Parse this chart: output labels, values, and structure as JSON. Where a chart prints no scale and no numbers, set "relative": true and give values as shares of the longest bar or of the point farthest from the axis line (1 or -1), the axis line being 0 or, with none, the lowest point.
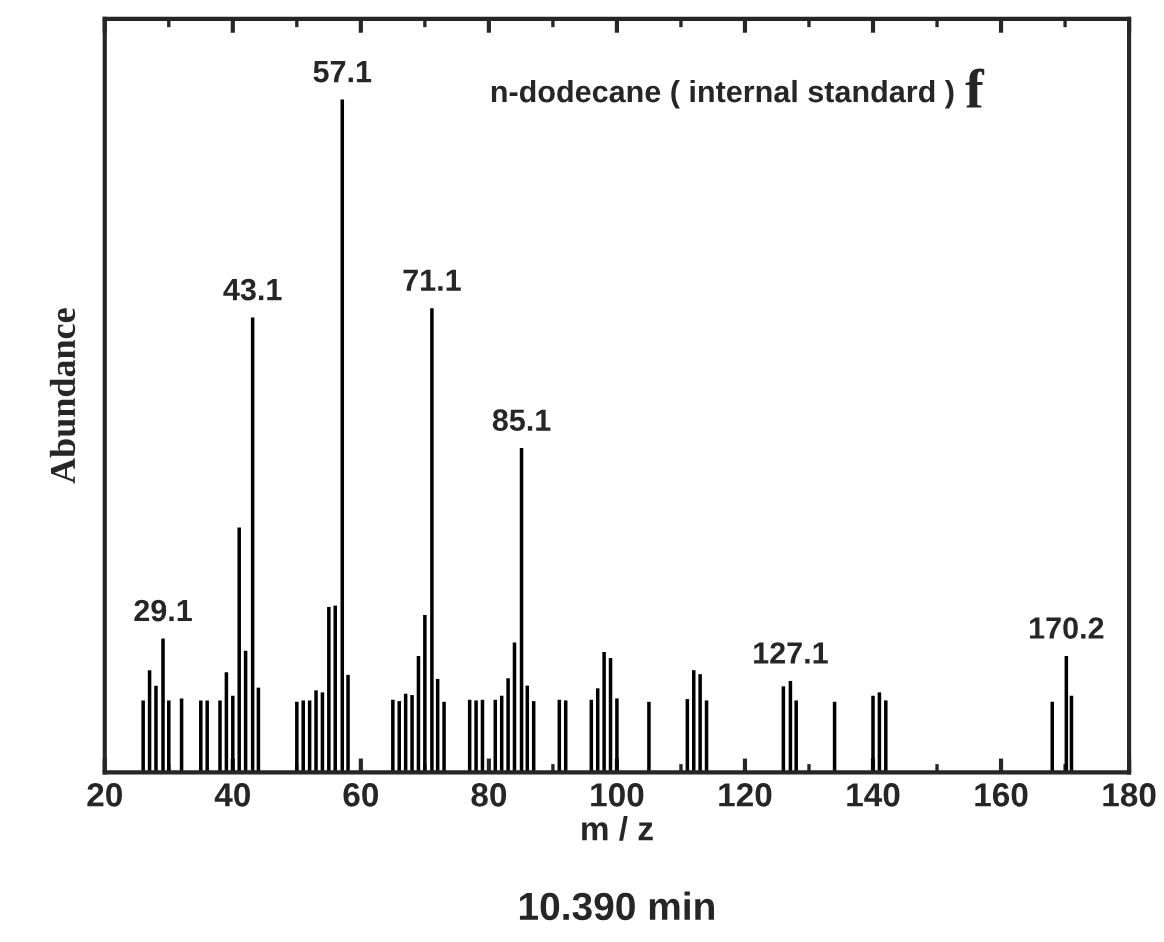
{
  "chart_data": {
    "type": "bar",
    "title": "n-dodecane ( internal standard )",
    "xlabel": "m / z",
    "ylabel": "Abundance",
    "relative": true,
    "x": [
      26,
      27,
      28,
      29.1,
      30,
      32,
      35,
      36,
      38,
      39,
      40,
      41,
      42,
      43.1,
      44,
      50,
      51,
      52,
      53,
      54,
      55,
      56,
      57.1,
      58,
      65,
      66,
      67,
      68,
      69,
      70,
      71.1,
      72,
      73,
      77,
      78,
      79,
      81,
      82,
      83,
      84,
      85.1,
      86,
      87,
      91,
      92,
      96,
      97,
      98,
      99,
      100,
      105,
      111,
      112,
      113,
      114,
      126,
      127.1,
      128,
      134,
      140,
      141,
      142,
      168,
      170.2,
      171
    ],
    "values": [
      0.107,
      0.152,
      0.129,
      0.199,
      0.107,
      0.11,
      0.107,
      0.107,
      0.107,
      0.149,
      0.114,
      0.364,
      0.181,
      0.676,
      0.126,
      0.105,
      0.107,
      0.107,
      0.122,
      0.119,
      0.246,
      0.248,
      1,
      0.145,
      0.108,
      0.106,
      0.117,
      0.115,
      0.173,
      0.234,
      0.69,
      0.139,
      0.105,
      0.108,
      0.107,
      0.108,
      0.108,
      0.114,
      0.14,
      0.193,
      0.482,
      0.129,
      0.106,
      0.108,
      0.107,
      0.108,
      0.125,
      0.179,
      0.17,
      0.11,
      0.105,
      0.109,
      0.152,
      0.146,
      0.107,
      0.128,
      0.136,
      0.107,
      0.105,
      0.114,
      0.119,
      0.107,
      0.105,
      0.173,
      0.114
    ],
    "color": "#000000",
    "xlim": [
      20,
      180
    ],
    "xticks": [
      20,
      40,
      60,
      80,
      100,
      120,
      140,
      160,
      180
    ],
    "tick_labels": "x",
    "grid": false,
    "legend": false,
    "annotations": [
      "f",
      "10.390 min",
      {
        "text": "29.1",
        "x": 29.1,
        "y": 0.199
      },
      {
        "text": "43.1",
        "x": 43.1,
        "y": 0.676
      },
      {
        "text": "57.1",
        "x": 57.1,
        "y": 1
      },
      {
        "text": "71.1",
        "x": 71.1,
        "y": 0.69
      },
      {
        "text": "85.1",
        "x": 85.1,
        "y": 0.482
      },
      {
        "text": "127.1",
        "x": 127.1,
        "y": 0.136
      },
      {
        "text": "170.2",
        "x": 170.2,
        "y": 0.173
      }
    ]
  }
}
